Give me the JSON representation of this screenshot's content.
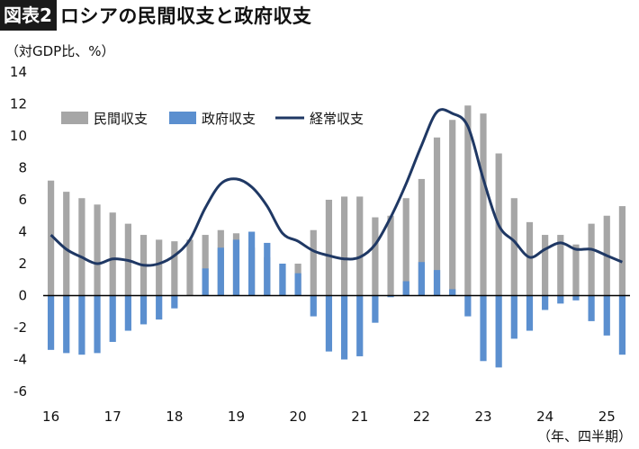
{
  "header": {
    "badge": "図表2",
    "title": "ロシアの民間収支と政府収支"
  },
  "unit_label": "（対GDP比、%）",
  "period_note": "（年、四半期）",
  "colors": {
    "private": "#a6a6a6",
    "government": "#5b8fcf",
    "current": "#1f3864",
    "zero_line": "#000000"
  },
  "chart_data": {
    "type": "bar",
    "title": "ロシアの民間収支と政府収支",
    "ylabel": "（対GDP比、%）",
    "xlabel": "（年、四半期）",
    "ylim": [
      -6,
      14
    ],
    "yticks": [
      -6,
      -4,
      -2,
      0,
      2,
      4,
      6,
      8,
      10,
      12,
      14
    ],
    "year_labels": [
      "16",
      "17",
      "18",
      "19",
      "20",
      "21",
      "22",
      "23",
      "24",
      "25"
    ],
    "legend_position": "top-left",
    "grid": false,
    "categories": [
      "16Q1",
      "16Q2",
      "16Q3",
      "16Q4",
      "17Q1",
      "17Q2",
      "17Q3",
      "17Q4",
      "18Q1",
      "18Q2",
      "18Q3",
      "18Q4",
      "19Q1",
      "19Q2",
      "19Q3",
      "19Q4",
      "20Q1",
      "20Q2",
      "20Q3",
      "20Q4",
      "21Q1",
      "21Q2",
      "21Q3",
      "21Q4",
      "22Q1",
      "22Q2",
      "22Q3",
      "22Q4",
      "23Q1",
      "23Q2",
      "23Q3",
      "23Q4",
      "24Q1",
      "24Q2",
      "24Q3",
      "24Q4",
      "25Q1",
      "25Q2"
    ],
    "series": [
      {
        "name": "民間収支",
        "type": "bar",
        "values": [
          7.2,
          6.5,
          6.1,
          5.7,
          5.2,
          4.5,
          3.8,
          3.5,
          3.4,
          3.5,
          3.8,
          4.1,
          3.9,
          3.0,
          2.4,
          2.0,
          2.0,
          4.1,
          6.0,
          6.2,
          6.2,
          4.9,
          5.0,
          6.1,
          7.3,
          9.9,
          11.0,
          11.9,
          11.4,
          8.9,
          6.1,
          4.6,
          3.8,
          3.8,
          3.2,
          4.5,
          5.0,
          5.6
        ]
      },
      {
        "name": "政府収支",
        "type": "bar",
        "values": [
          -3.4,
          -3.6,
          -3.7,
          -3.6,
          -2.9,
          -2.2,
          -1.8,
          -1.5,
          -0.8,
          0.0,
          1.7,
          3.0,
          3.5,
          4.0,
          3.3,
          2.0,
          1.4,
          -1.3,
          -3.5,
          -4.0,
          -3.8,
          -1.7,
          -0.1,
          0.9,
          2.1,
          1.6,
          0.4,
          -1.3,
          -4.1,
          -4.5,
          -2.7,
          -2.2,
          -0.9,
          -0.5,
          -0.3,
          -1.6,
          -2.5,
          -3.7
        ]
      },
      {
        "name": "経常収支",
        "type": "line",
        "values": [
          3.8,
          2.9,
          2.4,
          2.0,
          2.3,
          2.2,
          1.9,
          2.0,
          2.5,
          3.5,
          5.5,
          7.0,
          7.3,
          6.8,
          5.6,
          3.9,
          3.4,
          2.8,
          2.5,
          2.3,
          2.4,
          3.2,
          4.9,
          7.0,
          9.4,
          11.5,
          11.4,
          10.6,
          7.3,
          4.4,
          3.4,
          2.4,
          2.9,
          3.3,
          2.9,
          2.9,
          2.5,
          2.1
        ]
      }
    ]
  }
}
